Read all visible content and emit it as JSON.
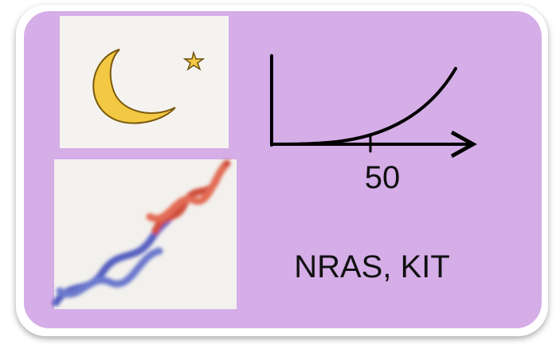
{
  "diagram": {
    "axis_tick_label": "50",
    "genes": "NRAS, KIT"
  }
}
